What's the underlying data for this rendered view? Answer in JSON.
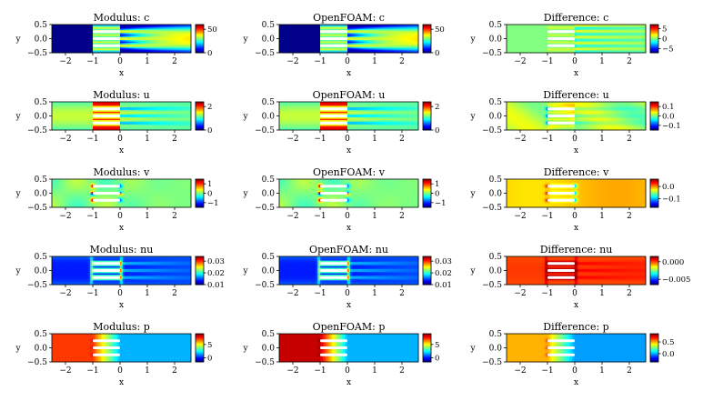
{
  "chart_data": {
    "type": "heatmap",
    "layout": {
      "rows": 5,
      "cols": 3
    },
    "colormap": "jet",
    "xlabel": "x",
    "ylabel": "y",
    "xlim": [
      -2.5,
      2.6
    ],
    "ylim": [
      -0.5,
      0.5
    ],
    "xticks": [
      -2,
      -1,
      0,
      1,
      2
    ],
    "yticks": [
      0.5,
      0.0,
      -0.5
    ],
    "xtick_labels": [
      "−2",
      "−1",
      "0",
      "1",
      "2"
    ],
    "ytick_labels": [
      "0.5",
      "0.0",
      "−0.5"
    ],
    "obstacles": {
      "x_range": [
        -1.0,
        0.0
      ],
      "y_centers": [
        0.25,
        0.0,
        -0.25
      ],
      "half_height": 0.05
    },
    "panels": [
      {
        "title": "Modulus: c",
        "field": "c",
        "kind": "model",
        "clim": [
          0,
          60
        ],
        "cbar_ticks": [
          50,
          0
        ],
        "cbar_labels": [
          "50",
          "0"
        ]
      },
      {
        "title": "OpenFOAM: c",
        "field": "c",
        "kind": "ref",
        "clim": [
          0,
          60
        ],
        "cbar_ticks": [
          50,
          0
        ],
        "cbar_labels": [
          "50",
          "0"
        ]
      },
      {
        "title": "Difference: c",
        "field": "c",
        "kind": "diff",
        "clim": [
          -7,
          7
        ],
        "cbar_ticks": [
          5,
          0,
          -5
        ],
        "cbar_labels": [
          "5",
          "0",
          "−5"
        ]
      },
      {
        "title": "Modulus: u",
        "field": "u",
        "kind": "model",
        "clim": [
          0,
          2.4
        ],
        "cbar_ticks": [
          2,
          0
        ],
        "cbar_labels": [
          "2",
          "0"
        ]
      },
      {
        "title": "OpenFOAM: u",
        "field": "u",
        "kind": "ref",
        "clim": [
          0,
          2.4
        ],
        "cbar_ticks": [
          2,
          0
        ],
        "cbar_labels": [
          "2",
          "0"
        ]
      },
      {
        "title": "Difference: u",
        "field": "u",
        "kind": "diff",
        "clim": [
          -0.15,
          0.15
        ],
        "cbar_ticks": [
          0.1,
          0.0,
          -0.1
        ],
        "cbar_labels": [
          "0.1",
          "0.0",
          "−0.1"
        ]
      },
      {
        "title": "Modulus: v",
        "field": "v",
        "kind": "model",
        "clim": [
          -1.5,
          1.5
        ],
        "cbar_ticks": [
          1,
          0,
          -1
        ],
        "cbar_labels": [
          "1",
          "0",
          "−1"
        ]
      },
      {
        "title": "OpenFOAM: v",
        "field": "v",
        "kind": "ref",
        "clim": [
          -1.5,
          1.5
        ],
        "cbar_ticks": [
          1,
          0,
          -1
        ],
        "cbar_labels": [
          "1",
          "0",
          "−1"
        ]
      },
      {
        "title": "Difference: v",
        "field": "v",
        "kind": "diff",
        "clim": [
          -0.17,
          0.06
        ],
        "cbar_ticks": [
          0.0,
          -0.1
        ],
        "cbar_labels": [
          "0.0",
          "−0.1"
        ]
      },
      {
        "title": "Modulus: nu",
        "field": "nu",
        "kind": "model",
        "clim": [
          0.01,
          0.034
        ],
        "cbar_ticks": [
          0.03,
          0.02,
          0.01
        ],
        "cbar_labels": [
          "0.03",
          "0.02",
          "0.01"
        ]
      },
      {
        "title": "OpenFOAM: nu",
        "field": "nu",
        "kind": "ref",
        "clim": [
          0.01,
          0.034
        ],
        "cbar_ticks": [
          0.03,
          0.02,
          0.01
        ],
        "cbar_labels": [
          "0.03",
          "0.02",
          "0.01"
        ]
      },
      {
        "title": "Difference: nu",
        "field": "nu",
        "kind": "diff",
        "clim": [
          -0.0065,
          0.0015
        ],
        "cbar_ticks": [
          0.0,
          -0.005
        ],
        "cbar_labels": [
          "0.000",
          "−0.005"
        ]
      },
      {
        "title": "Modulus: p",
        "field": "p",
        "kind": "model",
        "clim": [
          -1.5,
          9
        ],
        "cbar_ticks": [
          5,
          0
        ],
        "cbar_labels": [
          "5",
          "0"
        ]
      },
      {
        "title": "OpenFOAM: p",
        "field": "p",
        "kind": "ref",
        "clim": [
          -1.5,
          9
        ],
        "cbar_ticks": [
          5,
          0
        ],
        "cbar_labels": [
          "5",
          "0"
        ]
      },
      {
        "title": "Difference: p",
        "field": "p",
        "kind": "diff",
        "clim": [
          -0.35,
          0.85
        ],
        "cbar_ticks": [
          0.5,
          0.0
        ],
        "cbar_labels": [
          "0.5",
          "0.0"
        ]
      }
    ]
  }
}
